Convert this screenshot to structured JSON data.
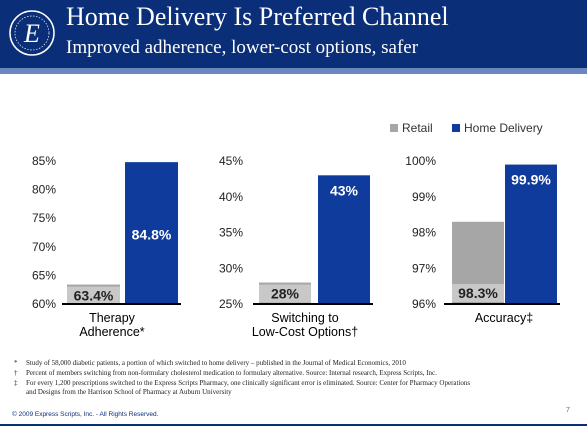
{
  "header": {
    "title": "Home Delivery Is Preferred Channel",
    "subtitle": "Improved adherence, lower-cost options, safer"
  },
  "colors": {
    "banner": "#0a2f78",
    "retail": "#a6a6a6",
    "home_delivery": "#0e3b9c",
    "label_box": "#c8c8c8"
  },
  "chart_data": [
    {
      "type": "bar",
      "categories": [
        "Therapy Adherence*"
      ],
      "label_lines": [
        "Therapy",
        "Adherence*"
      ],
      "series": [
        {
          "name": "Retail",
          "values": [
            63.4
          ],
          "label": "63.4%"
        },
        {
          "name": "Home Delivery",
          "values": [
            84.8
          ],
          "label": "84.8%"
        }
      ],
      "ylim": [
        60,
        85
      ],
      "yticks": [
        "60%",
        "65%",
        "70%",
        "75%",
        "80%",
        "85%"
      ],
      "legend": ""
    },
    {
      "type": "bar",
      "categories": [
        "Switching to Low-Cost Options†"
      ],
      "label_lines": [
        "Switching to",
        "Low-Cost Options†"
      ],
      "series": [
        {
          "name": "Retail",
          "values": [
            28
          ],
          "label": "28%"
        },
        {
          "name": "Home Delivery",
          "values": [
            43
          ],
          "label": "43%"
        }
      ],
      "ylim": [
        25,
        45
      ],
      "yticks": [
        "25%",
        "30%",
        "35%",
        "40%",
        "45%"
      ],
      "legend": ""
    },
    {
      "type": "bar",
      "categories": [
        "Accuracy‡"
      ],
      "label_lines": [
        "Accuracy‡"
      ],
      "series": [
        {
          "name": "Retail",
          "values": [
            98.3
          ],
          "label": "98.3%"
        },
        {
          "name": "Home Delivery",
          "values": [
            99.9
          ],
          "label": "99.9%"
        }
      ],
      "ylim": [
        96,
        100
      ],
      "yticks": [
        "96%",
        "97%",
        "98%",
        "99%",
        "100%"
      ],
      "legend": "top-right"
    }
  ],
  "footnotes": [
    {
      "mark": "*",
      "text": "Study of 58,000 diabetic patients, a portion of which switched to home delivery – published in the Journal of Medical Economics, 2010"
    },
    {
      "mark": "†",
      "text": "Percent of members switching from non-formulary cholesterol medication to formulary alternative.  Source: Internal research, Express Scripts, Inc."
    },
    {
      "mark": "‡",
      "text": "For every 1,200 prescriptions switched to the Express Scripts Pharmacy, one clinically significant error is eliminated. Source: Center for Pharmacy Operations"
    },
    {
      "mark": "",
      "text": "and Designs from the Harrison School of Pharmacy at Auburn University"
    }
  ],
  "footer": {
    "copyright": "© 2009 Express Scripts, Inc.  - All Rights Reserved.",
    "page": "7"
  }
}
